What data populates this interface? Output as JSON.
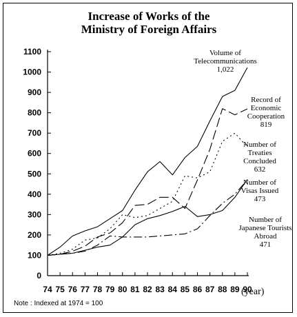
{
  "chart_data": {
    "type": "line",
    "title_lines": [
      "Increase of  Works of the",
      "Ministry of Foreign Affairs"
    ],
    "xlabel": "(year)",
    "note": "Note : Indexed at 1974 = 100",
    "categories": [
      "74",
      "75",
      "76",
      "77",
      "78",
      "79",
      "80",
      "81",
      "82",
      "83",
      "84",
      "85",
      "86",
      "87",
      "88",
      "89",
      "90"
    ],
    "y_ticks": [
      0,
      100,
      200,
      300,
      400,
      500,
      600,
      700,
      800,
      900,
      1000,
      1100
    ],
    "ylim": [
      0,
      1100
    ],
    "grid": false,
    "series": [
      {
        "id": "telecom",
        "label_lines": [
          "Volume of",
          "Telecommunications",
          "1,022"
        ],
        "dash": "solid",
        "values": [
          100,
          140,
          195,
          220,
          240,
          280,
          320,
          420,
          510,
          560,
          495,
          580,
          635,
          760,
          880,
          910,
          1022
        ]
      },
      {
        "id": "economic",
        "label_lines": [
          "Record of",
          "Economic",
          "Cooperation",
          "819"
        ],
        "dash": "longdash",
        "values": [
          100,
          105,
          120,
          145,
          190,
          210,
          260,
          345,
          350,
          385,
          385,
          330,
          470,
          620,
          820,
          790,
          819
        ]
      },
      {
        "id": "treaties",
        "label_lines": [
          "Number of",
          "Treaties",
          "Concluded",
          "632"
        ],
        "dash": "dot",
        "values": [
          100,
          110,
          130,
          175,
          185,
          230,
          300,
          285,
          295,
          330,
          365,
          490,
          480,
          510,
          660,
          700,
          632
        ]
      },
      {
        "id": "visas",
        "label_lines": [
          "Number of",
          "Visas Issued",
          "473"
        ],
        "dash": "solid",
        "values": [
          100,
          105,
          110,
          125,
          140,
          150,
          190,
          250,
          280,
          295,
          315,
          340,
          290,
          300,
          320,
          385,
          473
        ]
      },
      {
        "id": "tourists",
        "label_lines": [
          "Number of",
          "Japanese Tourists",
          "Abroad",
          "471"
        ],
        "dash": "dashdot",
        "values": [
          100,
          105,
          110,
          120,
          150,
          195,
          190,
          190,
          190,
          195,
          200,
          205,
          230,
          295,
          355,
          400,
          471
        ]
      }
    ]
  }
}
